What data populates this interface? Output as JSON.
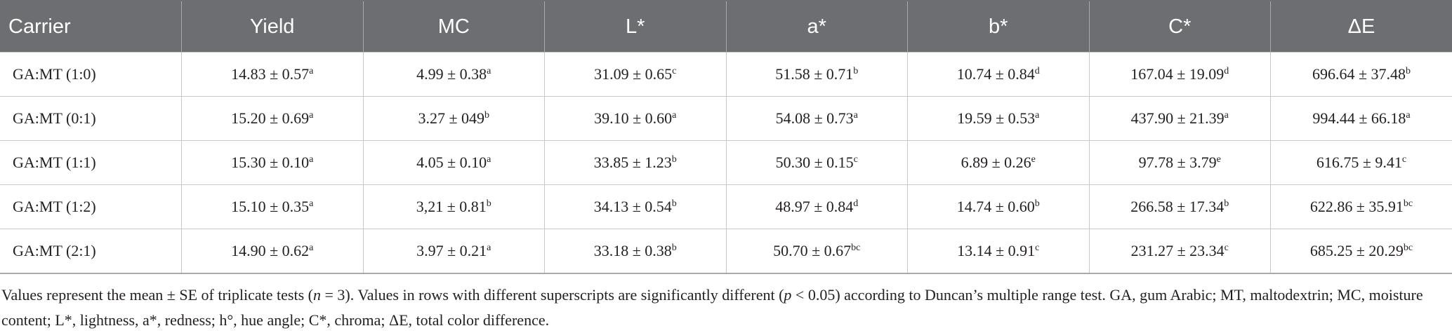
{
  "table": {
    "columns": [
      "Carrier",
      "Yield",
      "MC",
      "L*",
      "a*",
      "b*",
      "C*",
      "ΔE"
    ],
    "rows": [
      [
        "GA:MT (1:0)",
        {
          "value": "14.83 ± 0.57",
          "sup": "a"
        },
        {
          "value": "4.99 ± 0.38",
          "sup": "a"
        },
        {
          "value": "31.09 ± 0.65",
          "sup": "c"
        },
        {
          "value": "51.58 ± 0.71",
          "sup": "b"
        },
        {
          "value": "10.74 ± 0.84",
          "sup": "d"
        },
        {
          "value": "167.04 ± 19.09",
          "sup": "d"
        },
        {
          "value": "696.64 ± 37.48",
          "sup": "b"
        }
      ],
      [
        "GA:MT (0:1)",
        {
          "value": "15.20 ± 0.69",
          "sup": "a"
        },
        {
          "value": "3.27 ± 049",
          "sup": "b"
        },
        {
          "value": "39.10 ± 0.60",
          "sup": "a"
        },
        {
          "value": "54.08 ± 0.73",
          "sup": "a"
        },
        {
          "value": "19.59 ± 0.53",
          "sup": "a"
        },
        {
          "value": "437.90 ± 21.39",
          "sup": "a"
        },
        {
          "value": "994.44 ± 66.18",
          "sup": "a"
        }
      ],
      [
        "GA:MT (1:1)",
        {
          "value": "15.30 ± 0.10",
          "sup": "a"
        },
        {
          "value": "4.05 ± 0.10",
          "sup": "a"
        },
        {
          "value": "33.85 ± 1.23",
          "sup": "b"
        },
        {
          "value": "50.30 ± 0.15",
          "sup": "c"
        },
        {
          "value": "6.89 ± 0.26",
          "sup": "e"
        },
        {
          "value": "97.78 ± 3.79",
          "sup": "e"
        },
        {
          "value": "616.75 ± 9.41",
          "sup": "c"
        }
      ],
      [
        "GA:MT (1:2)",
        {
          "value": "15.10 ± 0.35",
          "sup": "a"
        },
        {
          "value": "3,21 ± 0.81",
          "sup": "b"
        },
        {
          "value": "34.13 ± 0.54",
          "sup": "b"
        },
        {
          "value": "48.97 ± 0.84",
          "sup": "d"
        },
        {
          "value": "14.74 ± 0.60",
          "sup": "b"
        },
        {
          "value": "266.58 ± 17.34",
          "sup": "b"
        },
        {
          "value": "622.86 ± 35.91",
          "sup": "bc"
        }
      ],
      [
        "GA:MT (2:1)",
        {
          "value": "14.90 ± 0.62",
          "sup": "a"
        },
        {
          "value": "3.97 ± 0.21",
          "sup": "a"
        },
        {
          "value": "33.18 ± 0.38",
          "sup": "b"
        },
        {
          "value": "50.70 ± 0.67",
          "sup": "bc"
        },
        {
          "value": "13.14 ± 0.91",
          "sup": "c"
        },
        {
          "value": "231.27 ± 23.34",
          "sup": "c"
        },
        {
          "value": "685.25 ± 20.29",
          "sup": "bc"
        }
      ]
    ]
  },
  "footnote": [
    {
      "text": "Values represent the mean ± SE of triplicate tests (",
      "italic": false
    },
    {
      "text": "n",
      "italic": true
    },
    {
      "text": " = 3). Values in rows with different superscripts are significantly different (",
      "italic": false
    },
    {
      "text": "p",
      "italic": true
    },
    {
      "text": " < 0.05) according to Duncan’s multiple range test. GA, gum Arabic; MT, maltodextrin; MC, moisture content; L*, lightness, a*, redness; h°, hue angle; C*, chroma; ΔE, total color difference.",
      "italic": false
    }
  ]
}
